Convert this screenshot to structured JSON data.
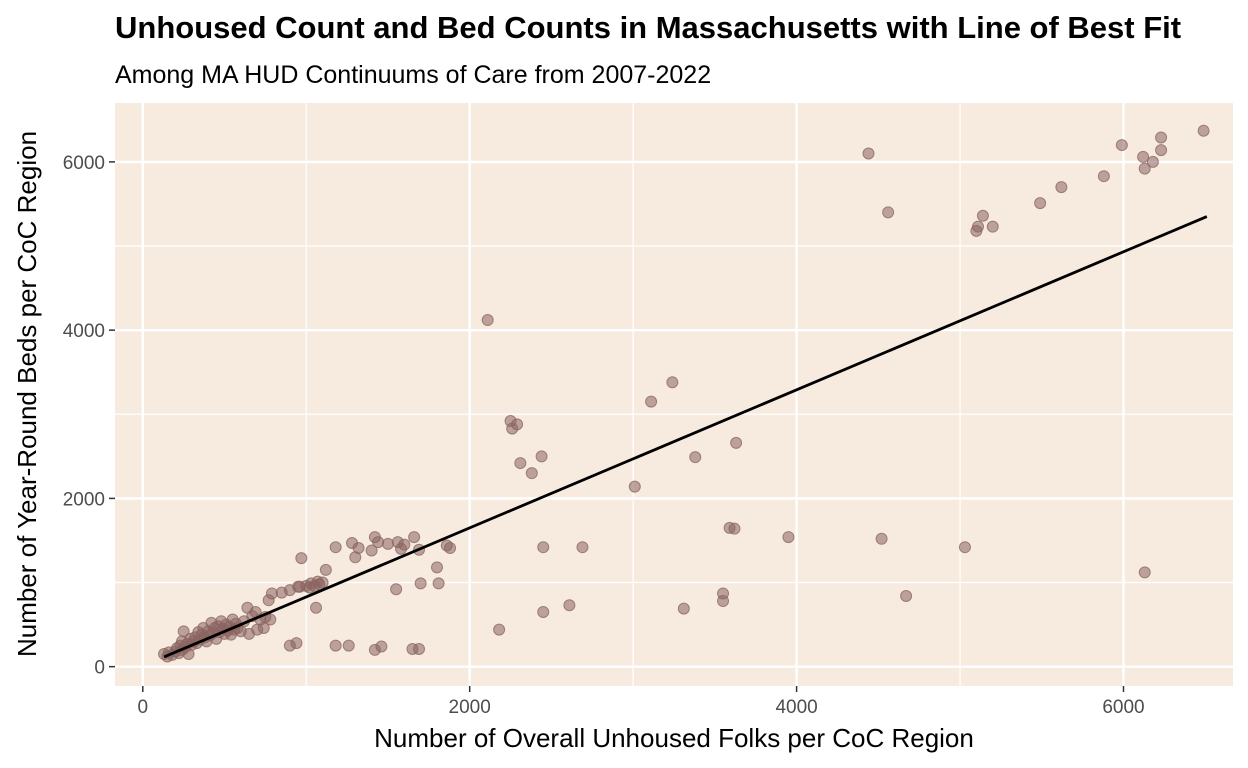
{
  "chart_data": {
    "type": "scatter",
    "title": "Unhoused Count and Bed Counts in Massachusetts with Line of Best Fit",
    "subtitle": "Among MA HUD Continuums of Care from 2007-2022",
    "xlabel": "Number of Overall Unhoused Folks per CoC Region",
    "ylabel": "Number of Year-Round Beds per CoC Region",
    "xlim": [
      -170,
      6670
    ],
    "ylim": [
      -230,
      6700
    ],
    "x_ticks": [
      0,
      2000,
      4000,
      6000
    ],
    "y_ticks": [
      0,
      2000,
      4000,
      6000
    ],
    "x_tick_labels": [
      "0",
      "2000",
      "4000",
      "6000"
    ],
    "y_tick_labels": [
      "0",
      "2000",
      "4000",
      "6000"
    ],
    "grid": true,
    "background_color": "#f7ebe0",
    "point_color": "#8a6460",
    "line_color": "#000000",
    "trend_line": {
      "x": [
        130,
        6510
      ],
      "y": [
        115,
        5350
      ]
    },
    "points": [
      [
        130,
        150
      ],
      [
        150,
        120
      ],
      [
        160,
        170
      ],
      [
        180,
        140
      ],
      [
        200,
        180
      ],
      [
        210,
        220
      ],
      [
        220,
        160
      ],
      [
        230,
        250
      ],
      [
        240,
        200
      ],
      [
        240,
        300
      ],
      [
        250,
        420
      ],
      [
        260,
        230
      ],
      [
        270,
        270
      ],
      [
        280,
        150
      ],
      [
        290,
        330
      ],
      [
        300,
        260
      ],
      [
        310,
        300
      ],
      [
        320,
        350
      ],
      [
        330,
        280
      ],
      [
        340,
        410
      ],
      [
        350,
        320
      ],
      [
        360,
        380
      ],
      [
        370,
        460
      ],
      [
        380,
        350
      ],
      [
        390,
        300
      ],
      [
        400,
        420
      ],
      [
        410,
        370
      ],
      [
        420,
        520
      ],
      [
        430,
        400
      ],
      [
        440,
        460
      ],
      [
        450,
        330
      ],
      [
        460,
        480
      ],
      [
        470,
        410
      ],
      [
        480,
        540
      ],
      [
        490,
        450
      ],
      [
        500,
        390
      ],
      [
        510,
        500
      ],
      [
        520,
        430
      ],
      [
        530,
        470
      ],
      [
        540,
        380
      ],
      [
        550,
        560
      ],
      [
        560,
        440
      ],
      [
        570,
        510
      ],
      [
        580,
        460
      ],
      [
        600,
        420
      ],
      [
        620,
        540
      ],
      [
        640,
        700
      ],
      [
        650,
        390
      ],
      [
        670,
        600
      ],
      [
        690,
        650
      ],
      [
        700,
        440
      ],
      [
        720,
        560
      ],
      [
        740,
        460
      ],
      [
        750,
        590
      ],
      [
        770,
        790
      ],
      [
        780,
        560
      ],
      [
        790,
        870
      ],
      [
        850,
        880
      ],
      [
        900,
        910
      ],
      [
        950,
        950
      ],
      [
        960,
        950
      ],
      [
        970,
        1290
      ],
      [
        1000,
        960
      ],
      [
        1020,
        940
      ],
      [
        1030,
        990
      ],
      [
        1050,
        960
      ],
      [
        1060,
        700
      ],
      [
        1070,
        1010
      ],
      [
        1080,
        980
      ],
      [
        1100,
        1000
      ],
      [
        1120,
        1150
      ],
      [
        1180,
        1420
      ],
      [
        1280,
        1470
      ],
      [
        1300,
        1300
      ],
      [
        1320,
        1410
      ],
      [
        1400,
        1380
      ],
      [
        1420,
        1540
      ],
      [
        1440,
        1480
      ],
      [
        1500,
        1460
      ],
      [
        1560,
        1480
      ],
      [
        1580,
        1400
      ],
      [
        1600,
        1450
      ],
      [
        1660,
        1540
      ],
      [
        1690,
        1390
      ],
      [
        1700,
        990
      ],
      [
        1800,
        1180
      ],
      [
        1810,
        990
      ],
      [
        1860,
        1440
      ],
      [
        1880,
        1410
      ],
      [
        1550,
        920
      ],
      [
        900,
        250
      ],
      [
        940,
        280
      ],
      [
        1180,
        250
      ],
      [
        1260,
        250
      ],
      [
        1420,
        200
      ],
      [
        1460,
        240
      ],
      [
        1650,
        210
      ],
      [
        1690,
        210
      ],
      [
        2110,
        4120
      ],
      [
        2180,
        440
      ],
      [
        2250,
        2920
      ],
      [
        2260,
        2830
      ],
      [
        2290,
        2880
      ],
      [
        2310,
        2420
      ],
      [
        2380,
        2300
      ],
      [
        2440,
        2500
      ],
      [
        2450,
        1420
      ],
      [
        2450,
        650
      ],
      [
        2610,
        730
      ],
      [
        2690,
        1420
      ],
      [
        3010,
        2140
      ],
      [
        3110,
        3150
      ],
      [
        3240,
        3380
      ],
      [
        3310,
        690
      ],
      [
        3380,
        2490
      ],
      [
        3550,
        870
      ],
      [
        3550,
        780
      ],
      [
        3590,
        1650
      ],
      [
        3620,
        1640
      ],
      [
        3630,
        2660
      ],
      [
        3950,
        1540
      ],
      [
        4440,
        6100
      ],
      [
        4520,
        1520
      ],
      [
        4560,
        5400
      ],
      [
        4670,
        840
      ],
      [
        5030,
        1420
      ],
      [
        5100,
        5180
      ],
      [
        5110,
        5230
      ],
      [
        5140,
        5360
      ],
      [
        5200,
        5230
      ],
      [
        5490,
        5510
      ],
      [
        5620,
        5700
      ],
      [
        5880,
        5830
      ],
      [
        5990,
        6200
      ],
      [
        6120,
        6060
      ],
      [
        6130,
        5920
      ],
      [
        6130,
        1120
      ],
      [
        6180,
        6000
      ],
      [
        6230,
        6290
      ],
      [
        6230,
        6140
      ],
      [
        6490,
        6370
      ]
    ]
  }
}
